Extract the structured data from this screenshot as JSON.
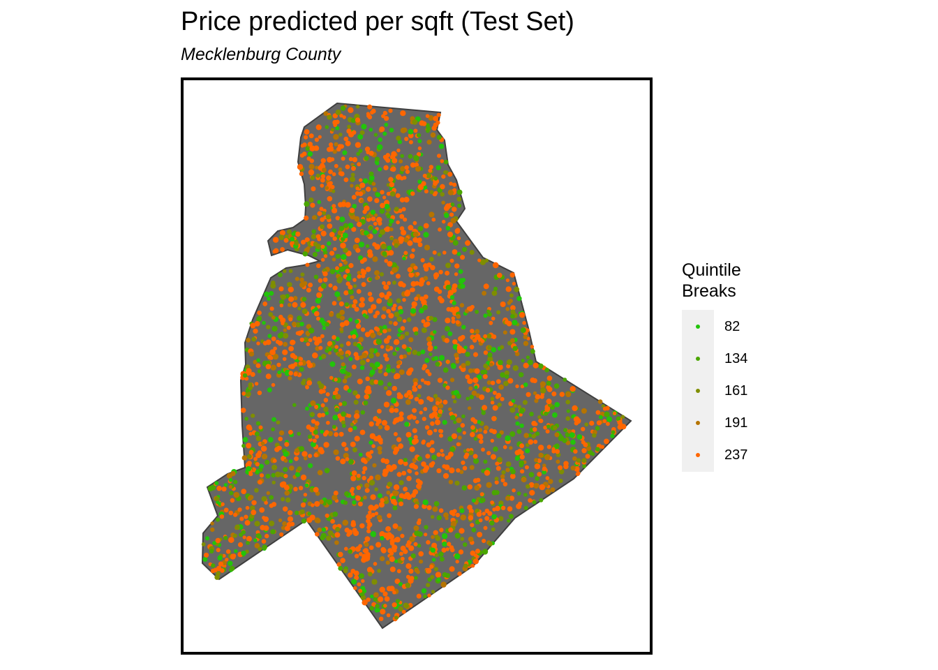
{
  "title": "Price predicted per sqft (Test Set)",
  "subtitle": "Mecklenburg County",
  "map": {
    "region": "Mecklenburg County",
    "region_fill": "#666666",
    "region_stroke": "#3f3f3f",
    "frame_stroke": "#000000",
    "point_layer": "predicted price per sqft (test set)"
  },
  "legend": {
    "title_line1": "Quintile",
    "title_line2": "Breaks",
    "items": [
      {
        "label": "82",
        "color": "#22c40a"
      },
      {
        "label": "134",
        "color": "#4aa600"
      },
      {
        "label": "161",
        "color": "#7f8e00"
      },
      {
        "label": "191",
        "color": "#b57400"
      },
      {
        "label": "237",
        "color": "#ff6600"
      }
    ]
  }
}
